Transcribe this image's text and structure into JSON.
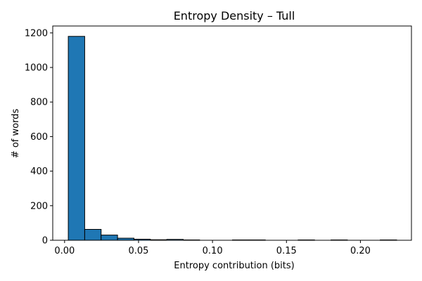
{
  "chart_data": {
    "type": "bar",
    "title": "Entropy Density – Tull",
    "xlabel": "Entropy contribution (bits)",
    "ylabel": "# of words",
    "xlim": [
      -0.008,
      0.2345
    ],
    "ylim": [
      0,
      1240
    ],
    "bar_color": "#1f77b4",
    "edge_color": "#000000",
    "xticks": [
      0.0,
      0.05,
      0.1,
      0.15,
      0.2
    ],
    "xtick_labels": [
      "0.00",
      "0.05",
      "0.10",
      "0.15",
      "0.20"
    ],
    "yticks": [
      0,
      200,
      400,
      600,
      800,
      1000,
      1200
    ],
    "ytick_labels": [
      "0",
      "200",
      "400",
      "600",
      "800",
      "1000",
      "1200"
    ],
    "bins": [
      {
        "x0": 0.0025,
        "x1": 0.0136,
        "count": 1180
      },
      {
        "x0": 0.0136,
        "x1": 0.0247,
        "count": 63
      },
      {
        "x0": 0.0247,
        "x1": 0.0358,
        "count": 30
      },
      {
        "x0": 0.0358,
        "x1": 0.0469,
        "count": 12
      },
      {
        "x0": 0.0469,
        "x1": 0.058,
        "count": 6
      },
      {
        "x0": 0.058,
        "x1": 0.0691,
        "count": 3
      },
      {
        "x0": 0.0691,
        "x1": 0.0802,
        "count": 5
      },
      {
        "x0": 0.0802,
        "x1": 0.0913,
        "count": 2
      },
      {
        "x0": 0.0913,
        "x1": 0.1024,
        "count": 0
      },
      {
        "x0": 0.1024,
        "x1": 0.1135,
        "count": 0
      },
      {
        "x0": 0.1135,
        "x1": 0.1246,
        "count": 2
      },
      {
        "x0": 0.1246,
        "x1": 0.1357,
        "count": 2
      },
      {
        "x0": 0.1357,
        "x1": 0.1468,
        "count": 0
      },
      {
        "x0": 0.1468,
        "x1": 0.1579,
        "count": 0
      },
      {
        "x0": 0.1579,
        "x1": 0.169,
        "count": 2
      },
      {
        "x0": 0.169,
        "x1": 0.1801,
        "count": 0
      },
      {
        "x0": 0.1801,
        "x1": 0.1912,
        "count": 2
      },
      {
        "x0": 0.1912,
        "x1": 0.2023,
        "count": 0
      },
      {
        "x0": 0.2023,
        "x1": 0.2134,
        "count": 0
      },
      {
        "x0": 0.2134,
        "x1": 0.2245,
        "count": 2
      }
    ]
  }
}
